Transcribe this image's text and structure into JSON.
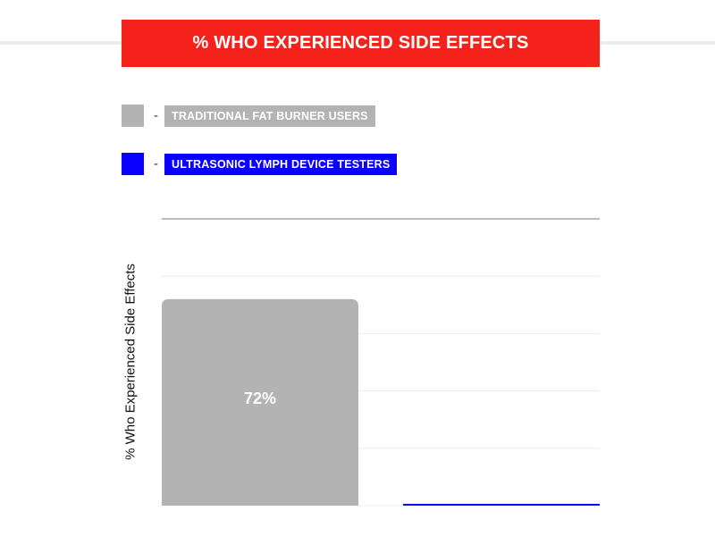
{
  "colors": {
    "title_bg": "#f5221b",
    "traditional": "#b3b3b3",
    "ultrasonic": "#0a00ff",
    "grid": "#ececec",
    "top_grid": "#bdbdbd"
  },
  "chart_data": {
    "type": "bar",
    "title": "% WHO EXPERIENCED SIDE EFFECTS",
    "ylabel": "% Who Experienced Side Effects",
    "xlabel": "",
    "categories": [
      "TRADITIONAL FAT BURNER USERS",
      "ULTRASONIC LYMPH DEVICE TESTERS"
    ],
    "values": [
      72,
      0
    ],
    "data_labels": [
      "72%",
      ""
    ],
    "ylim": [
      0,
      100
    ],
    "grid": true,
    "legend": "top-left",
    "legend_entries": [
      {
        "label": "TRADITIONAL FAT BURNER USERS",
        "color": "#b3b3b3"
      },
      {
        "label": "ULTRASONIC LYMPH DEVICE TESTERS",
        "color": "#0a00ff"
      }
    ],
    "legend_separator": "-"
  }
}
